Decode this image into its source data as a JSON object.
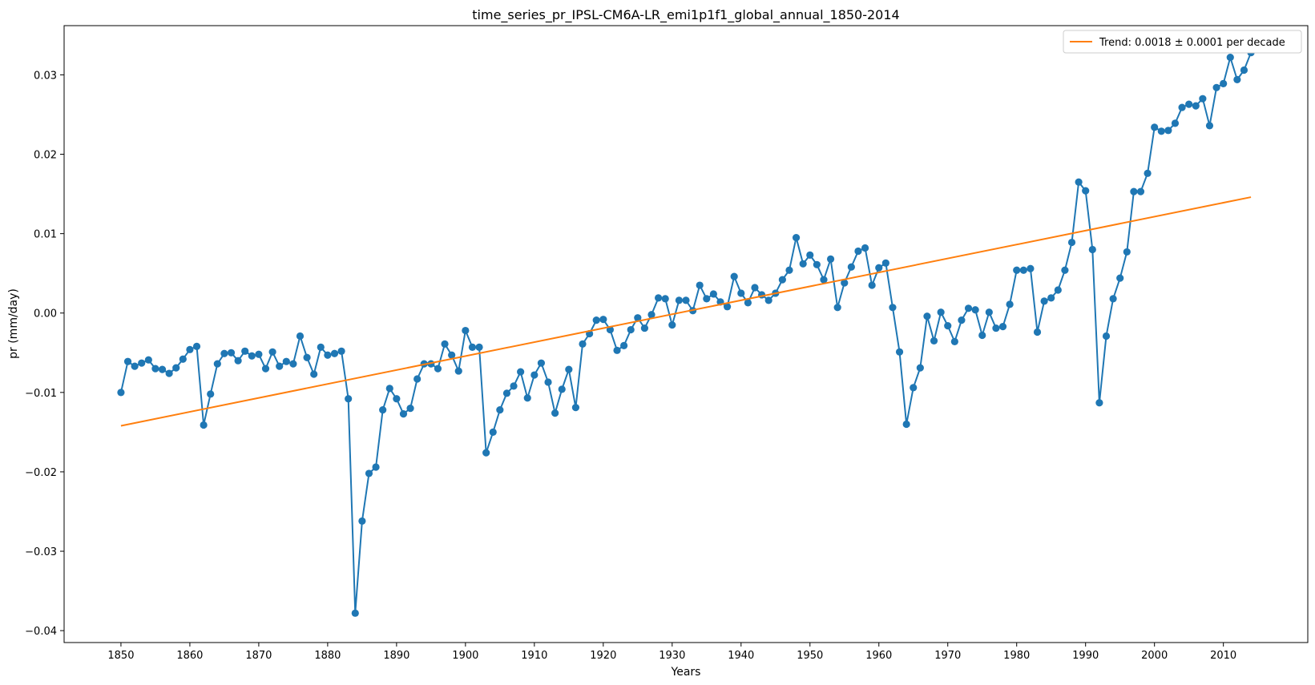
{
  "chart_data": {
    "type": "line",
    "title": "time_series_pr_IPSL-CM6A-LR_emi1p1f1_global_annual_1850-2014",
    "xlabel": "Years",
    "ylabel": "pr (mm/day)",
    "xlim": [
      1841.75,
      2022.25
    ],
    "ylim": [
      -0.0415,
      0.0362
    ],
    "xticks": [
      1850,
      1860,
      1870,
      1880,
      1890,
      1900,
      1910,
      1920,
      1930,
      1940,
      1950,
      1960,
      1970,
      1980,
      1990,
      2000,
      2010
    ],
    "yticks": [
      -0.04,
      -0.03,
      -0.02,
      -0.01,
      0.0,
      0.01,
      0.02,
      0.03
    ],
    "ytick_labels": [
      "−0.04",
      "−0.03",
      "−0.02",
      "−0.01",
      "0.00",
      "0.01",
      "0.02",
      "0.03"
    ],
    "grid": false,
    "legend_position": "upper right",
    "series": [
      {
        "color": "#1f77b4",
        "marker": "circle",
        "x": [
          1850,
          1851,
          1852,
          1853,
          1854,
          1855,
          1856,
          1857,
          1858,
          1859,
          1860,
          1861,
          1862,
          1863,
          1864,
          1865,
          1866,
          1867,
          1868,
          1869,
          1870,
          1871,
          1872,
          1873,
          1874,
          1875,
          1876,
          1877,
          1878,
          1879,
          1880,
          1881,
          1882,
          1883,
          1884,
          1885,
          1886,
          1887,
          1888,
          1889,
          1890,
          1891,
          1892,
          1893,
          1894,
          1895,
          1896,
          1897,
          1898,
          1899,
          1900,
          1901,
          1902,
          1903,
          1904,
          1905,
          1906,
          1907,
          1908,
          1909,
          1910,
          1911,
          1912,
          1913,
          1914,
          1915,
          1916,
          1917,
          1918,
          1919,
          1920,
          1921,
          1922,
          1923,
          1924,
          1925,
          1926,
          1927,
          1928,
          1929,
          1930,
          1931,
          1932,
          1933,
          1934,
          1935,
          1936,
          1937,
          1938,
          1939,
          1940,
          1941,
          1942,
          1943,
          1944,
          1945,
          1946,
          1947,
          1948,
          1949,
          1950,
          1951,
          1952,
          1953,
          1954,
          1955,
          1956,
          1957,
          1958,
          1959,
          1960,
          1961,
          1962,
          1963,
          1964,
          1965,
          1966,
          1967,
          1968,
          1969,
          1970,
          1971,
          1972,
          1973,
          1974,
          1975,
          1976,
          1977,
          1978,
          1979,
          1980,
          1981,
          1982,
          1983,
          1984,
          1985,
          1986,
          1987,
          1988,
          1989,
          1990,
          1991,
          1992,
          1993,
          1994,
          1995,
          1996,
          1997,
          1998,
          1999,
          2000,
          2001,
          2002,
          2003,
          2004,
          2005,
          2006,
          2007,
          2008,
          2009,
          2010,
          2011,
          2012,
          2013,
          2014
        ],
        "y": [
          -0.01,
          -0.0061,
          -0.0067,
          -0.0063,
          -0.0059,
          -0.007,
          -0.0071,
          -0.0076,
          -0.0069,
          -0.0058,
          -0.0046,
          -0.0042,
          -0.0141,
          -0.0102,
          -0.0064,
          -0.0051,
          -0.005,
          -0.006,
          -0.0048,
          -0.0054,
          -0.0052,
          -0.007,
          -0.0049,
          -0.0067,
          -0.0061,
          -0.0064,
          -0.0029,
          -0.0056,
          -0.0077,
          -0.0043,
          -0.0053,
          -0.0051,
          -0.0048,
          -0.0108,
          -0.0378,
          -0.0262,
          -0.0202,
          -0.0194,
          -0.0122,
          -0.0095,
          -0.0108,
          -0.0127,
          -0.012,
          -0.0083,
          -0.0064,
          -0.0064,
          -0.007,
          -0.0039,
          -0.0053,
          -0.0073,
          -0.0022,
          -0.0043,
          -0.0043,
          -0.0176,
          -0.015,
          -0.0122,
          -0.0101,
          -0.0092,
          -0.0074,
          -0.0107,
          -0.0078,
          -0.0063,
          -0.0087,
          -0.0126,
          -0.0096,
          -0.0071,
          -0.0119,
          -0.0039,
          -0.0026,
          -0.0009,
          -0.0008,
          -0.0021,
          -0.0047,
          -0.0041,
          -0.0021,
          -0.0006,
          -0.0019,
          -0.0002,
          0.0019,
          0.0018,
          -0.0015,
          0.0016,
          0.0016,
          0.0003,
          0.0035,
          0.0018,
          0.0024,
          0.0014,
          0.0008,
          0.0046,
          0.0025,
          0.0013,
          0.0032,
          0.0023,
          0.0016,
          0.0025,
          0.0042,
          0.0054,
          0.0095,
          0.0062,
          0.0073,
          0.0061,
          0.0042,
          0.0068,
          0.0007,
          0.0038,
          0.0058,
          0.0078,
          0.0082,
          0.0035,
          0.0057,
          0.0063,
          0.0007,
          -0.0049,
          -0.014,
          -0.0094,
          -0.0069,
          -0.0004,
          -0.0035,
          0.0001,
          -0.0016,
          -0.0036,
          -0.0009,
          0.0006,
          0.0004,
          -0.0028,
          0.0001,
          -0.0019,
          -0.0017,
          0.0011,
          0.0054,
          0.0054,
          0.0056,
          -0.0024,
          0.0015,
          0.0019,
          0.0029,
          0.0054,
          0.0089,
          0.0165,
          0.0154,
          0.008,
          -0.0113,
          -0.0029,
          0.0018,
          0.0044,
          0.0077,
          0.0153,
          0.0153,
          0.0176,
          0.0234,
          0.0229,
          0.023,
          0.0239,
          0.0259,
          0.0263,
          0.0261,
          0.027,
          0.0236,
          0.0284,
          0.0289,
          0.0322,
          0.0294,
          0.0306,
          0.0328
        ]
      },
      {
        "name": "Trend: 0.0018 ± 0.0001 per decade",
        "color": "#ff7f0e",
        "x": [
          1850,
          2014
        ],
        "y": [
          -0.0142,
          0.0146
        ]
      }
    ]
  }
}
